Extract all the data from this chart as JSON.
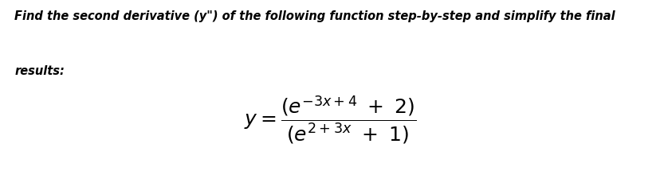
{
  "background_color": "#ffffff",
  "instruction_text_line1": "Find the second derivative (y\") of the following function step-by-step and simplify the final",
  "instruction_text_line2": "results:",
  "instruction_fontsize": 10.5,
  "instruction_style": "italic",
  "instruction_weight": "bold",
  "formula_fontsize": 18,
  "text_color": "#000000",
  "fig_width": 8.29,
  "fig_height": 2.15,
  "fig_dpi": 100
}
